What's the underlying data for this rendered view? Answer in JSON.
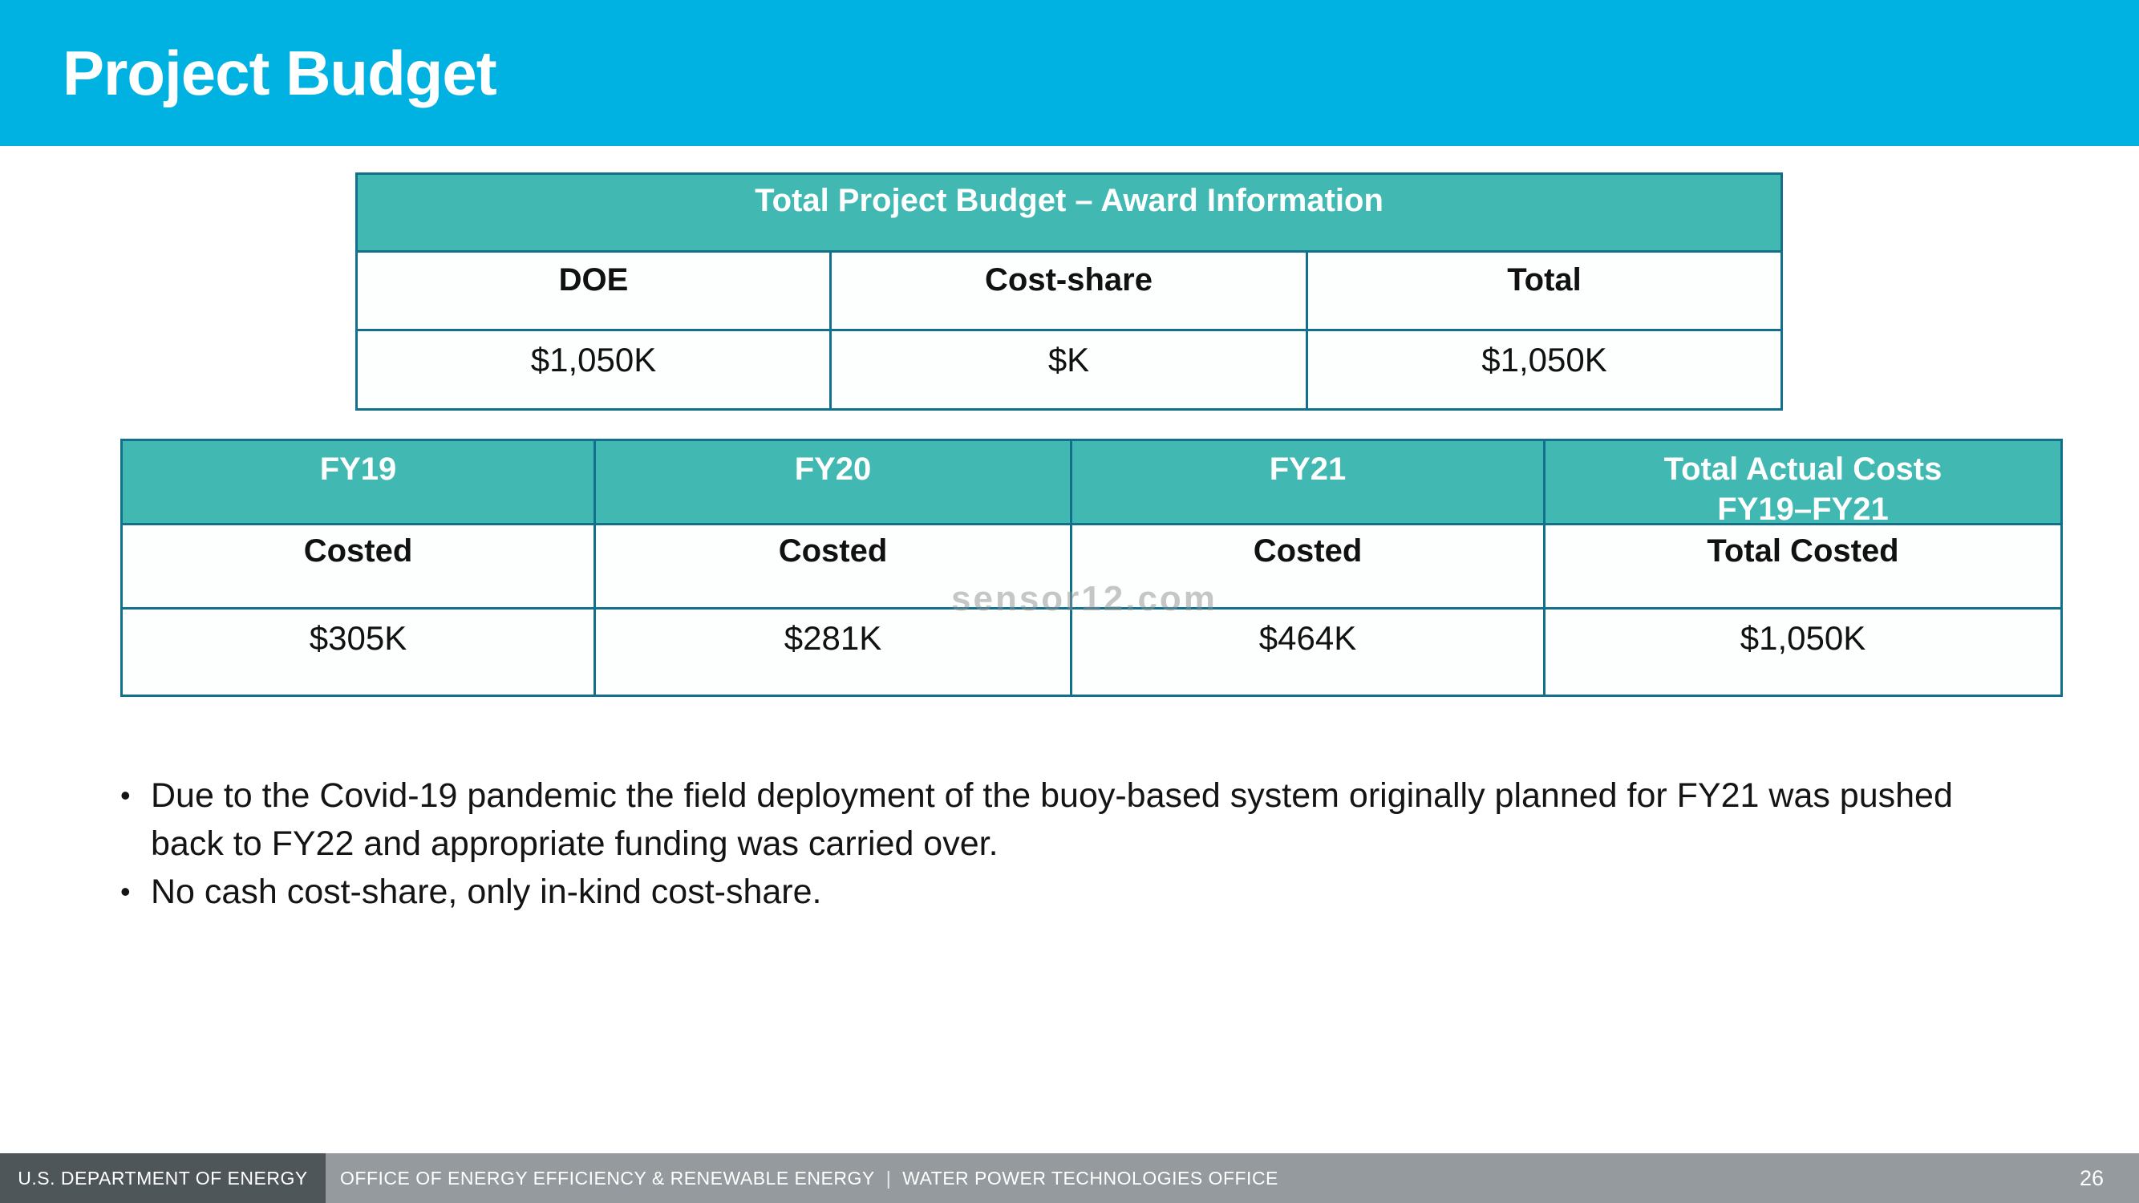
{
  "slide": {
    "title": "Project Budget"
  },
  "award_table": {
    "title": "Total Project Budget – Award Information",
    "columns": [
      "DOE",
      "Cost-share",
      "Total"
    ],
    "values": [
      "$1,050K",
      "$K",
      "$1,050K"
    ]
  },
  "costs_table": {
    "headers": [
      "FY19",
      "FY20",
      "FY21"
    ],
    "total_header_line1": "Total Actual Costs",
    "total_header_line2": "FY19–FY21",
    "row_labels": [
      "Costed",
      "Costed",
      "Costed",
      "Total Costed"
    ],
    "values": [
      "$305K",
      "$281K",
      "$464K",
      "$1,050K"
    ]
  },
  "bullets": [
    "Due to the Covid-19 pandemic the field deployment of the buoy-based system originally planned for FY21 was pushed back to FY22 and appropriate funding was carried over.",
    "No cash cost-share, only in-kind cost-share."
  ],
  "watermark": "sensor12.com",
  "footer": {
    "department": "U.S. DEPARTMENT OF ENERGY",
    "office": "OFFICE OF ENERGY EFFICIENCY & RENEWABLE ENERGY",
    "divider": "|",
    "program": "WATER POWER TECHNOLOGIES OFFICE",
    "page": "26"
  },
  "colors": {
    "title_bar": "#00B2E2",
    "table_header_fill": "#41B9B2",
    "table_border": "#12708C",
    "footer_bar": "#949A9D",
    "footer_department_box": "#4F565A",
    "watermark": "#8F8F8F"
  }
}
